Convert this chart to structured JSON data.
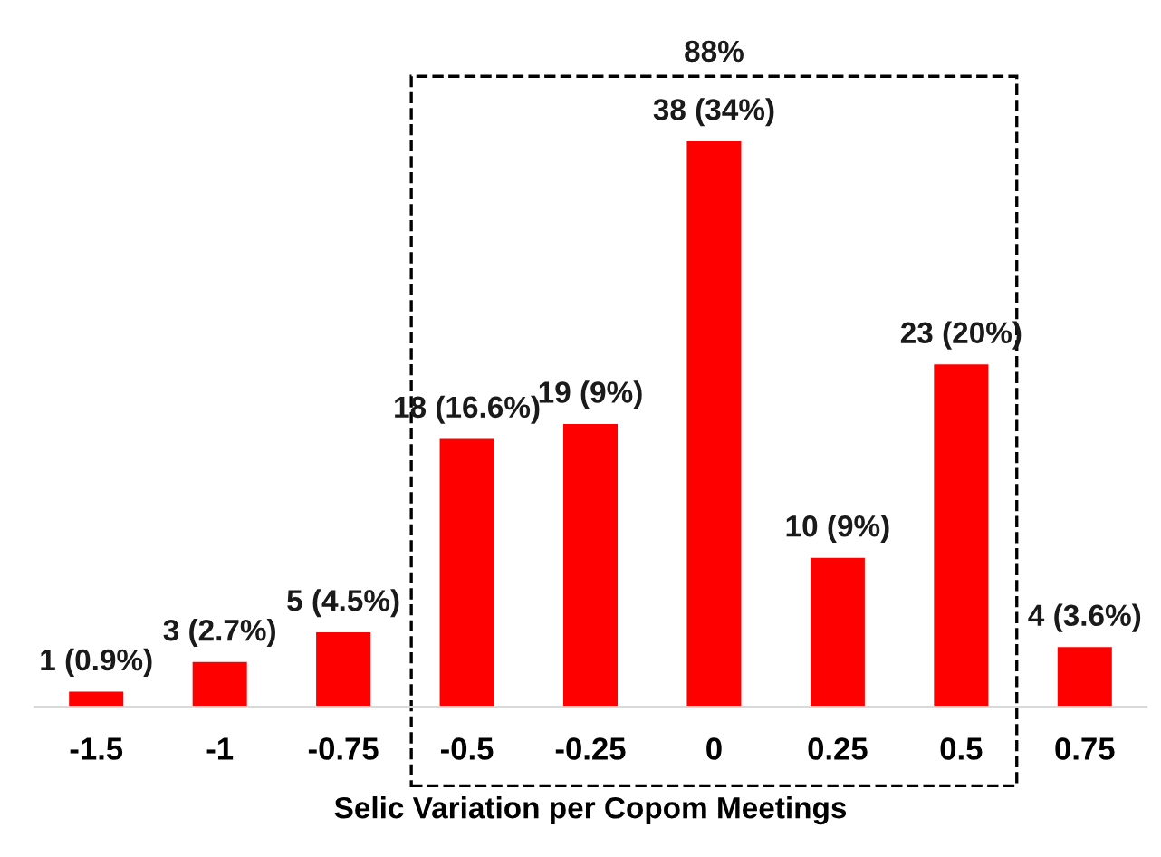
{
  "chart_data": {
    "type": "bar",
    "xlabel": "Selic Variation per Copom Meetings",
    "categories": [
      "-1.5",
      "-1",
      "-0.75",
      "-0.5",
      "-0.25",
      "0",
      "0.25",
      "0.5",
      "0.75"
    ],
    "values": [
      1,
      3,
      5,
      18,
      19,
      38,
      10,
      23,
      4
    ],
    "value_labels": [
      "1 (0.9%)",
      "3 (2.7%)",
      "5 (4.5%)",
      "18 (16.6%)",
      "19 (9%)",
      "38 (34%)",
      "10 (9%)",
      "23 (20%)",
      "4 (3.6%)"
    ],
    "color": "#ff0000",
    "annotations": [
      "88%"
    ],
    "grid": false
  }
}
